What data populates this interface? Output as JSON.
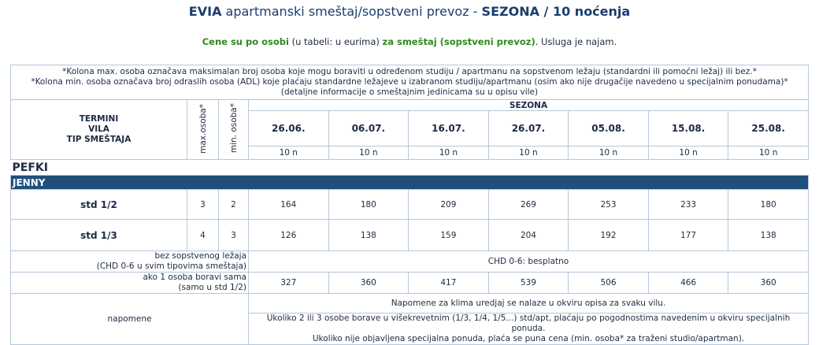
{
  "header": {
    "title": {
      "place": "EVIA",
      "text": " apartmanski smeštaj/sopstveni prevoz - ",
      "season": "SEZONA / 10 noćenja"
    },
    "subtitle": {
      "lead": "Cene su po osobi",
      "currency": " (u tabeli: u eurima) ",
      "basis": "za smeštaj (sopstveni prevoz)",
      "service": ". Usluga je najam."
    }
  },
  "table": {
    "notes": [
      "*Kolona max. osoba označava maksimalan broj osoba koje mogu boraviti u određenom studiju / apartmanu na sopstvenom ležaju (standardni ili pomoćni ležaj) ili bez.*",
      "*Kolona min. osoba označava broj odraslih osoba (ADL) koje plaćaju standardne ležajeve u izabranom studiju/apartmanu (osim ako nije drugačije navedeno u specijalnim ponudama)*",
      "(detaljne informacije o smeštajnim jedinicama su u opisu vile)"
    ],
    "head": {
      "labels": [
        "TERMINI",
        "VILA",
        "TIP SMEŠTAJA"
      ],
      "max": "max.osoba*",
      "min": "min. osoba*",
      "season": "SEZONA"
    },
    "dates": [
      "26.06.",
      "06.07.",
      "16.07.",
      "26.07.",
      "05.08.",
      "15.08.",
      "25.08."
    ],
    "nights": [
      "10 n",
      "10 n",
      "10 n",
      "10 n",
      "10 n",
      "10 n",
      "10 n"
    ],
    "place": "PEFKI",
    "villa": "JENNY",
    "rows": [
      {
        "type": "std 1/2",
        "max": 3,
        "min": 2,
        "prices": [
          164,
          180,
          209,
          269,
          253,
          233,
          180
        ]
      },
      {
        "type": "std 1/3",
        "max": 4,
        "min": 3,
        "prices": [
          126,
          138,
          159,
          204,
          192,
          177,
          138
        ]
      }
    ],
    "no_bed": {
      "label": [
        "bez sopstvenog ležaja",
        "(CHD 0-6 u svim tipovima smeštaja)"
      ],
      "text": "CHD 0-6: besplatno"
    },
    "single": {
      "label": [
        "ako 1 osoba boravi sama",
        "(samo u std 1/2)"
      ],
      "prices": [
        327,
        360,
        417,
        539,
        506,
        466,
        360
      ]
    },
    "remarks": {
      "label": "napomene",
      "notes": [
        "Napomene za klima uredjaj se nalaze u okviru opisa za svaku vilu.",
        "Ukoliko 2 ili 3 osobe borave u višekrevetnim (1/3, 1/4, 1/5...) std/apt, plaćaju po pogodnostima navedenim u okviru specijalnih ponuda.",
        "Ukoliko nije objavljena specijalna ponuda, plaća se puna cena (min. osoba* za traženi studio/apartman)."
      ]
    }
  }
}
